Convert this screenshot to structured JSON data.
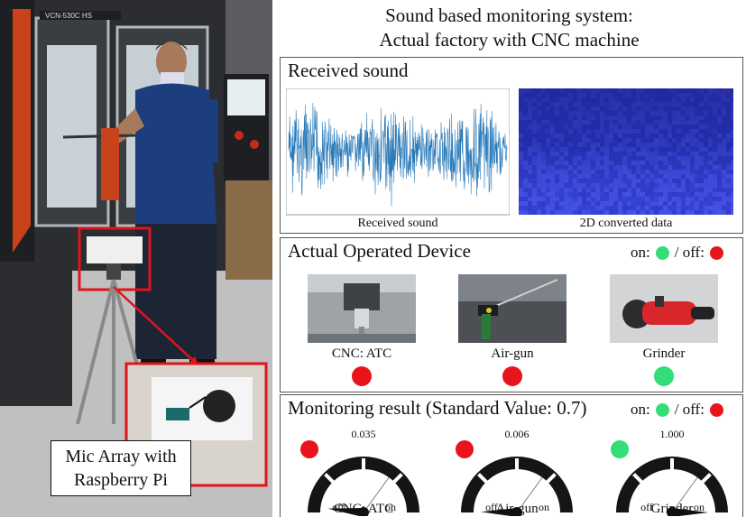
{
  "title": {
    "line1": "Sound based monitoring system:",
    "line2": "Actual factory with CNC machine"
  },
  "photo": {
    "caption_line1": "Mic Array with",
    "caption_line2": "Raspberry Pi",
    "machine_label": "VCN-530C HS"
  },
  "received_sound": {
    "title": "Received sound",
    "waveform_caption": "Received sound",
    "spectrogram_caption": "2D converted data"
  },
  "operated_device": {
    "title": "Actual Operated Device",
    "legend": {
      "on": "on:",
      "sep": "/ off:"
    },
    "devices": [
      {
        "label": "CNC: ATC",
        "state": "off"
      },
      {
        "label": "Air-gun",
        "state": "off"
      },
      {
        "label": "Grinder",
        "state": "on"
      }
    ]
  },
  "monitoring_result": {
    "title": "Monitoring result (Standard Value: 0.7)",
    "legend": {
      "on": "on:",
      "sep": "/ off:"
    },
    "standard_value": 0.7,
    "gauges": [
      {
        "label": "CNC: ATC",
        "value": "0.035",
        "level": 0.035,
        "state": "off",
        "off_text": "off",
        "on_text": "on"
      },
      {
        "label": "Air-gun",
        "value": "0.006",
        "level": 0.006,
        "state": "off",
        "off_text": "off",
        "on_text": "on"
      },
      {
        "label": "Grinder",
        "value": "1.000",
        "level": 1.0,
        "state": "on",
        "off_text": "off",
        "on_text": "on"
      }
    ]
  },
  "colors": {
    "on": "#33dd77",
    "off": "#e8141c",
    "waveform": "#2a7ab8",
    "highlight": "#e0141c"
  }
}
